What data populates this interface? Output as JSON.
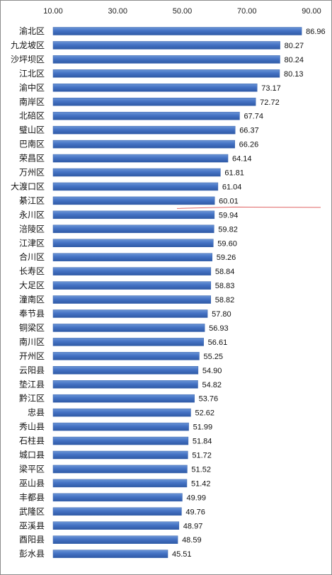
{
  "chart_data": {
    "type": "bar",
    "orientation": "horizontal",
    "title": "",
    "xlabel": "",
    "ylabel": "",
    "xlim": [
      10,
      90
    ],
    "xticks": [
      "10.00",
      "30.00",
      "50.00",
      "70.00",
      "90.00"
    ],
    "axis_position": "top",
    "grid": false,
    "legend": "none",
    "bar_color": "#4472C4",
    "reference_line_color": "#E06666",
    "categories": [
      "渝北区",
      "九龙坡区",
      "沙坪坝区",
      "江北区",
      "渝中区",
      "南岸区",
      "北碚区",
      "璧山区",
      "巴南区",
      "荣昌区",
      "万州区",
      "大渡口区",
      "綦江区",
      "永川区",
      "涪陵区",
      "江津区",
      "合川区",
      "长寿区",
      "大足区",
      "潼南区",
      "奉节县",
      "铜梁区",
      "南川区",
      "开州区",
      "云阳县",
      "垫江县",
      "黔江区",
      "忠县",
      "秀山县",
      "石柱县",
      "城口县",
      "梁平区",
      "巫山县",
      "丰都县",
      "武隆区",
      "巫溪县",
      "酉阳县",
      "彭水县"
    ],
    "values": [
      86.96,
      80.27,
      80.24,
      80.13,
      73.17,
      72.72,
      67.74,
      66.37,
      66.26,
      64.14,
      61.81,
      61.04,
      60.01,
      59.94,
      59.82,
      59.6,
      59.26,
      58.84,
      58.83,
      58.82,
      57.8,
      56.93,
      56.61,
      55.25,
      54.9,
      54.82,
      53.76,
      52.62,
      51.99,
      51.84,
      51.72,
      51.52,
      51.42,
      49.99,
      49.76,
      48.97,
      48.59,
      45.51
    ],
    "value_labels": [
      "86.96",
      "80.27",
      "80.24",
      "80.13",
      "73.17",
      "72.72",
      "67.74",
      "66.37",
      "66.26",
      "64.14",
      "61.81",
      "61.04",
      "60.01",
      "59.94",
      "59.82",
      "59.60",
      "59.26",
      "58.84",
      "58.83",
      "58.82",
      "57.80",
      "56.93",
      "56.61",
      "55.25",
      "54.90",
      "54.82",
      "53.76",
      "52.62",
      "51.99",
      "51.84",
      "51.72",
      "51.52",
      "51.42",
      "49.99",
      "49.76",
      "48.97",
      "48.59",
      "45.51"
    ]
  }
}
